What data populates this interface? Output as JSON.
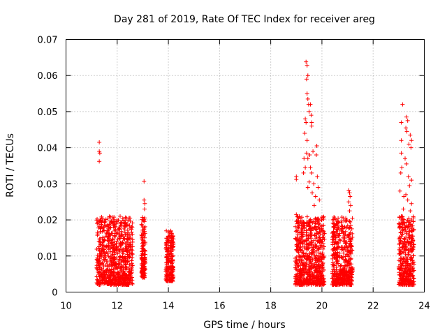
{
  "chart_data": {
    "type": "scatter",
    "title": "Day 281 of 2019, Rate Of TEC Index for receiver areg",
    "xlabel": "GPS time / hours",
    "ylabel": "ROTI / TECUs",
    "xlim": [
      10,
      24
    ],
    "ylim": [
      0,
      0.07
    ],
    "xticks": [
      "10",
      "12",
      "14",
      "16",
      "18",
      "20",
      "22",
      "24"
    ],
    "yticks": [
      "0",
      "0.01",
      "0.02",
      "0.03",
      "0.04",
      "0.05",
      "0.06",
      "0.07"
    ],
    "grid": true,
    "marker": "+",
    "color": "#ff0000",
    "clusters": [
      {
        "name": "11.2-12.6h",
        "x_range": [
          11.2,
          12.6
        ],
        "y_typical": [
          0.002,
          0.021
        ]
      },
      {
        "name": "13.0-13.1h",
        "x_range": [
          12.95,
          13.1
        ],
        "y_typical": [
          0.004,
          0.026
        ]
      },
      {
        "name": "13.9-14.2h",
        "x_range": [
          13.9,
          14.2
        ],
        "y_typical": [
          0.003,
          0.017
        ]
      },
      {
        "name": "19.0-20.1h",
        "x_range": [
          18.95,
          20.1
        ],
        "y_typical": [
          0.002,
          0.064
        ]
      },
      {
        "name": "20.4-21.2h",
        "x_range": [
          20.4,
          21.2
        ],
        "y_typical": [
          0.002,
          0.028
        ]
      },
      {
        "name": "23.0-23.6h",
        "x_range": [
          23.0,
          23.6
        ],
        "y_typical": [
          0.002,
          0.052
        ]
      }
    ],
    "points": [
      [
        11.3,
        0.0415
      ],
      [
        11.3,
        0.039
      ],
      [
        11.32,
        0.0385
      ],
      [
        11.3,
        0.0362
      ],
      [
        13.05,
        0.0307
      ],
      [
        13.05,
        0.0255
      ],
      [
        13.08,
        0.0245
      ],
      [
        13.07,
        0.023
      ],
      [
        19.0,
        0.032
      ],
      [
        19.0,
        0.0312
      ],
      [
        19.0,
        0.0215
      ],
      [
        19.38,
        0.0638
      ],
      [
        19.42,
        0.0628
      ],
      [
        19.45,
        0.06
      ],
      [
        19.4,
        0.059
      ],
      [
        19.42,
        0.055
      ],
      [
        19.45,
        0.0535
      ],
      [
        19.48,
        0.052
      ],
      [
        19.55,
        0.052
      ],
      [
        19.5,
        0.05
      ],
      [
        19.58,
        0.049
      ],
      [
        19.6,
        0.047
      ],
      [
        19.6,
        0.046
      ],
      [
        19.35,
        0.048
      ],
      [
        19.38,
        0.047
      ],
      [
        19.33,
        0.044
      ],
      [
        19.42,
        0.042
      ],
      [
        19.4,
        0.0385
      ],
      [
        19.45,
        0.037
      ],
      [
        19.52,
        0.038
      ],
      [
        19.65,
        0.039
      ],
      [
        19.3,
        0.037
      ],
      [
        19.35,
        0.0345
      ],
      [
        19.55,
        0.0345
      ],
      [
        19.6,
        0.033
      ],
      [
        19.28,
        0.033
      ],
      [
        19.68,
        0.03
      ],
      [
        19.8,
        0.0405
      ],
      [
        19.78,
        0.038
      ],
      [
        19.82,
        0.032
      ],
      [
        19.85,
        0.029
      ],
      [
        19.75,
        0.0265
      ],
      [
        19.9,
        0.0255
      ],
      [
        19.7,
        0.024
      ],
      [
        19.62,
        0.0275
      ],
      [
        19.5,
        0.0305
      ],
      [
        19.45,
        0.029
      ],
      [
        20.5,
        0.0205
      ],
      [
        20.55,
        0.02
      ],
      [
        20.6,
        0.019
      ],
      [
        21.05,
        0.0282
      ],
      [
        21.08,
        0.0275
      ],
      [
        21.1,
        0.0265
      ],
      [
        21.05,
        0.025
      ],
      [
        21.12,
        0.024
      ],
      [
        21.08,
        0.0225
      ],
      [
        23.15,
        0.052
      ],
      [
        23.3,
        0.0485
      ],
      [
        23.35,
        0.0475
      ],
      [
        23.1,
        0.047
      ],
      [
        23.28,
        0.0455
      ],
      [
        23.32,
        0.0445
      ],
      [
        23.45,
        0.0435
      ],
      [
        23.5,
        0.042
      ],
      [
        23.1,
        0.042
      ],
      [
        23.4,
        0.041
      ],
      [
        23.48,
        0.04
      ],
      [
        23.1,
        0.0385
      ],
      [
        23.25,
        0.037
      ],
      [
        23.3,
        0.0355
      ],
      [
        23.12,
        0.0345
      ],
      [
        23.08,
        0.033
      ],
      [
        23.38,
        0.032
      ],
      [
        23.5,
        0.031
      ],
      [
        23.42,
        0.0295
      ],
      [
        23.05,
        0.028
      ],
      [
        23.28,
        0.027
      ],
      [
        23.2,
        0.0265
      ],
      [
        23.35,
        0.0255
      ],
      [
        23.5,
        0.0245
      ],
      [
        23.18,
        0.023
      ],
      [
        23.45,
        0.0225
      ],
      [
        23.1,
        0.021
      ]
    ]
  }
}
